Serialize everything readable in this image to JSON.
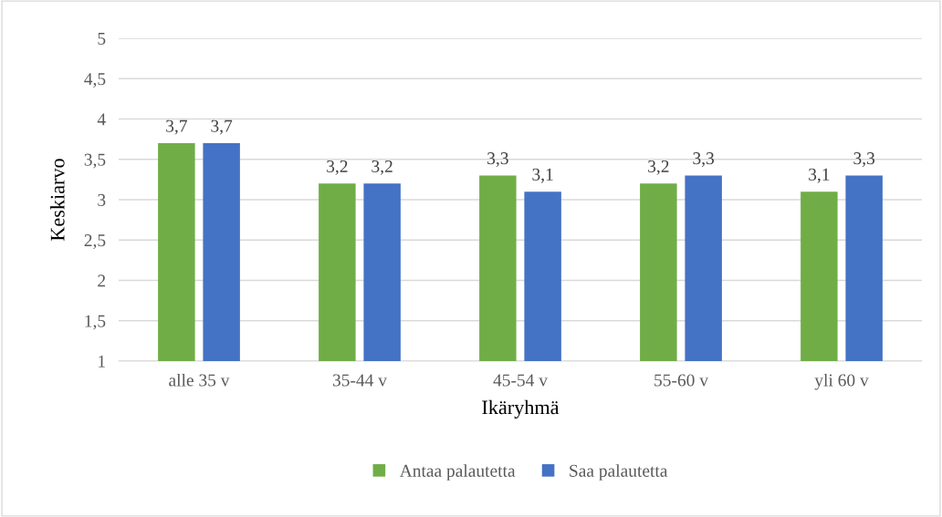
{
  "chart_data": {
    "type": "bar",
    "xlabel": "Ikäryhmä",
    "ylabel": "Keskiarvo",
    "categories": [
      "alle 35 v",
      "35-44 v",
      "45-54 v",
      "55-60 v",
      "yli 60 v"
    ],
    "series": [
      {
        "name": "Antaa palautetta",
        "color": "#70ad47",
        "values": [
          3.7,
          3.2,
          3.3,
          3.2,
          3.1
        ],
        "value_labels": [
          "3,7",
          "3,2",
          "3,3",
          "3,2",
          "3,1"
        ]
      },
      {
        "name": "Saa palautetta",
        "color": "#4472c4",
        "values": [
          3.7,
          3.2,
          3.1,
          3.3,
          3.3
        ],
        "value_labels": [
          "3,7",
          "3,2",
          "3,1",
          "3,3",
          "3,3"
        ]
      }
    ],
    "ylim": [
      1,
      5
    ],
    "yticks": [
      1,
      {
        "value": 1.5,
        "label": "1,5"
      },
      2,
      {
        "value": 2.5,
        "label": "2,5"
      },
      3,
      {
        "value": 3.5,
        "label": "3,5"
      },
      4,
      {
        "value": 4.5,
        "label": "4,5"
      },
      5
    ],
    "grid": "y",
    "legend": "bottom"
  }
}
